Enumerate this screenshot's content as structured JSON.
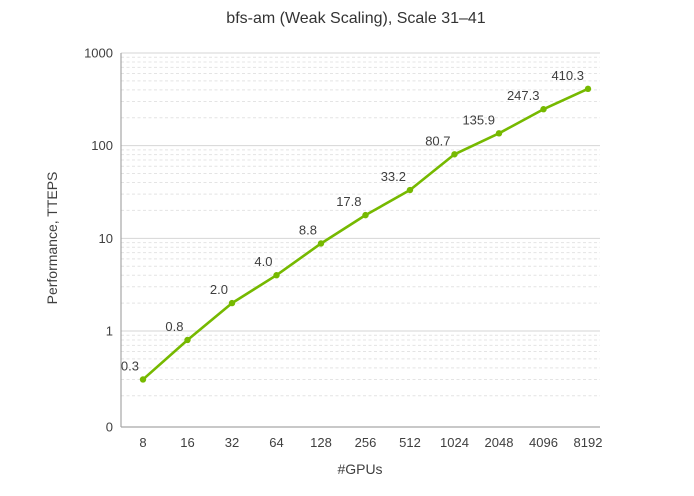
{
  "chart_data": {
    "type": "line",
    "title": "bfs-am (Weak Scaling), Scale 31–41",
    "xlabel": "#GPUs",
    "ylabel": "Performance, TTEPS",
    "categories": [
      "8",
      "16",
      "32",
      "64",
      "128",
      "256",
      "512",
      "1024",
      "2048",
      "4096",
      "8192"
    ],
    "series": [
      {
        "name": "bfs-am",
        "values": [
          0.3,
          0.8,
          2.0,
          4.0,
          8.8,
          17.8,
          33.2,
          80.7,
          135.9,
          247.3,
          410.3
        ]
      }
    ],
    "data_labels": [
      "0.3",
      "0.8",
      "2.0",
      "4.0",
      "8.8",
      "17.8",
      "33.2",
      "80.7",
      "135.9",
      "247.3",
      "410.3"
    ],
    "y_axis": {
      "scale": "log",
      "tick_labels": [
        "1000",
        "100",
        "10",
        "1",
        "0"
      ],
      "top_value": 1000
    },
    "x_axis": {
      "scale": "categorical-power-of-2"
    },
    "legend_position": "none",
    "grid": "major-solid-minor-dashed",
    "colors": {
      "line": "#76b900",
      "marker": "#76b900",
      "grid_major": "#d6d6d6",
      "grid_minor": "#e4e4e4",
      "axis": "#a6a6a6",
      "text": "#404040",
      "title": "#333333",
      "background": "#ffffff"
    }
  }
}
